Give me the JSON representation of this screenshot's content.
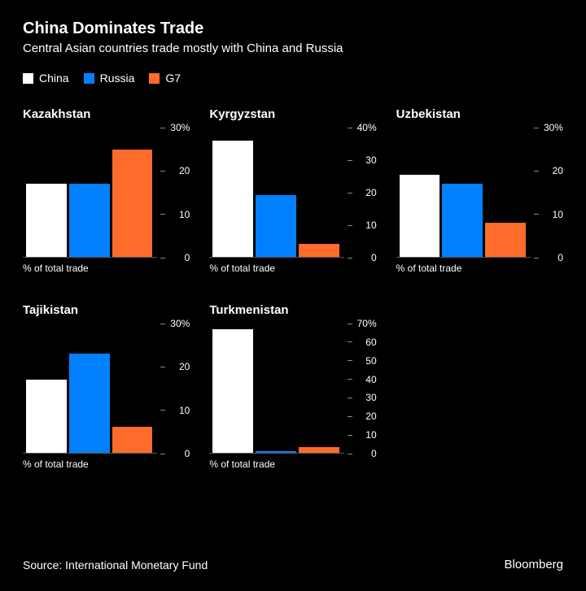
{
  "title": "China Dominates Trade",
  "subtitle": "Central Asian countries trade mostly with China and Russia",
  "title_fontsize": 20,
  "subtitle_fontsize": 15,
  "background_color": "#000000",
  "text_color": "#ffffff",
  "legend": [
    {
      "label": "China",
      "color": "#ffffff"
    },
    {
      "label": "Russia",
      "color": "#0080ff"
    },
    {
      "label": "G7",
      "color": "#ff6b2b"
    }
  ],
  "xlabel": "% of total trade",
  "panels": [
    {
      "title": "Kazakhstan",
      "ylim": [
        0,
        30
      ],
      "ytick_step": 10,
      "top_tick_suffix": "%",
      "values": [
        17,
        17,
        25
      ],
      "colors": [
        "#ffffff",
        "#0080ff",
        "#ff6b2b"
      ]
    },
    {
      "title": "Kyrgyzstan",
      "ylim": [
        0,
        40
      ],
      "ytick_step": 10,
      "top_tick_suffix": "%",
      "values": [
        36,
        19,
        4
      ],
      "colors": [
        "#ffffff",
        "#0080ff",
        "#ff6b2b"
      ]
    },
    {
      "title": "Uzbekistan",
      "ylim": [
        0,
        30
      ],
      "ytick_step": 10,
      "top_tick_suffix": "%",
      "values": [
        19,
        17,
        8
      ],
      "colors": [
        "#ffffff",
        "#0080ff",
        "#ff6b2b"
      ]
    },
    {
      "title": "Tajikistan",
      "ylim": [
        0,
        30
      ],
      "ytick_step": 10,
      "top_tick_suffix": "%",
      "values": [
        17,
        23,
        6
      ],
      "colors": [
        "#ffffff",
        "#0080ff",
        "#ff6b2b"
      ]
    },
    {
      "title": "Turkmenistan",
      "ylim": [
        0,
        70
      ],
      "ytick_step": 10,
      "top_tick_suffix": "%",
      "values": [
        67,
        1,
        3
      ],
      "colors": [
        "#ffffff",
        "#0080ff",
        "#ff6b2b"
      ]
    }
  ],
  "source": "Source: International Monetary Fund",
  "brand": "Bloomberg"
}
